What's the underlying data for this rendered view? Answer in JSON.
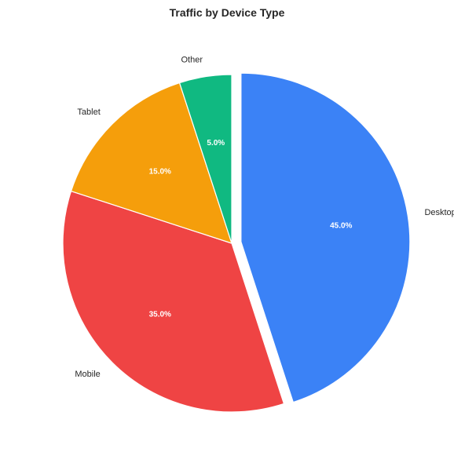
{
  "chart_data": {
    "type": "pie",
    "title": "Traffic by Device Type",
    "categories": [
      "Desktop",
      "Mobile",
      "Tablet",
      "Other"
    ],
    "values": [
      45.0,
      35.0,
      15.0,
      5.0
    ],
    "value_labels": [
      "45.0%",
      "35.0%",
      "15.0%",
      "5.0%"
    ],
    "colors": [
      "#3b82f6",
      "#ef4444",
      "#f59e0b",
      "#10b981"
    ],
    "exploded": [
      "Desktop"
    ],
    "start": "top",
    "direction": "clockwise",
    "legend": "none"
  }
}
